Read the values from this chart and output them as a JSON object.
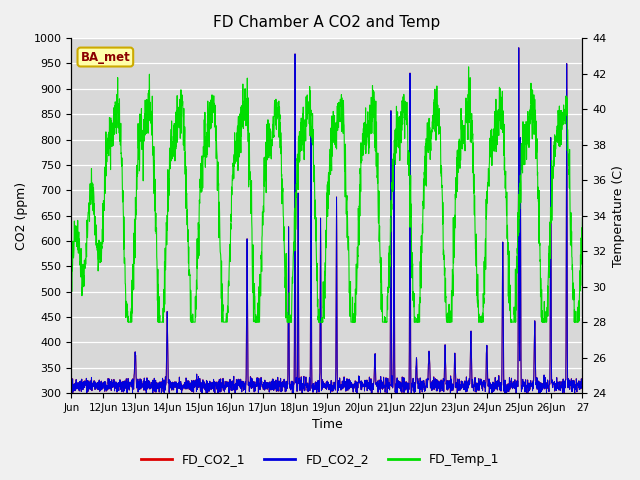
{
  "title": "FD Chamber A CO2 and Temp",
  "xlabel": "Time",
  "ylabel_left": "CO2 (ppm)",
  "ylabel_right": "Temperature (C)",
  "ylim_left": [
    300,
    1000
  ],
  "ylim_right": [
    24,
    44
  ],
  "annotation_text": "BA_met",
  "legend_labels": [
    "FD_CO2_1",
    "FD_CO2_2",
    "FD_Temp_1"
  ],
  "line_colors": [
    "#dd0000",
    "#0000dd",
    "#00dd00"
  ],
  "bg_color": "#e8e8e8",
  "plot_bg": "#d8d8d8",
  "xtick_labels": [
    "Jun",
    "12Jun",
    "13Jun",
    "14Jun",
    "15Jun",
    "16Jun",
    "17Jun",
    "18Jun",
    "19Jun",
    "20Jun",
    "21Jun",
    "22Jun",
    "23Jun",
    "24Jun",
    "25Jun",
    "26Jun",
    "27"
  ],
  "yticks_left": [
    300,
    350,
    400,
    450,
    500,
    550,
    600,
    650,
    700,
    750,
    800,
    850,
    900,
    950,
    1000
  ],
  "yticks_right": [
    24,
    26,
    28,
    30,
    32,
    34,
    36,
    38,
    40,
    42,
    44
  ]
}
